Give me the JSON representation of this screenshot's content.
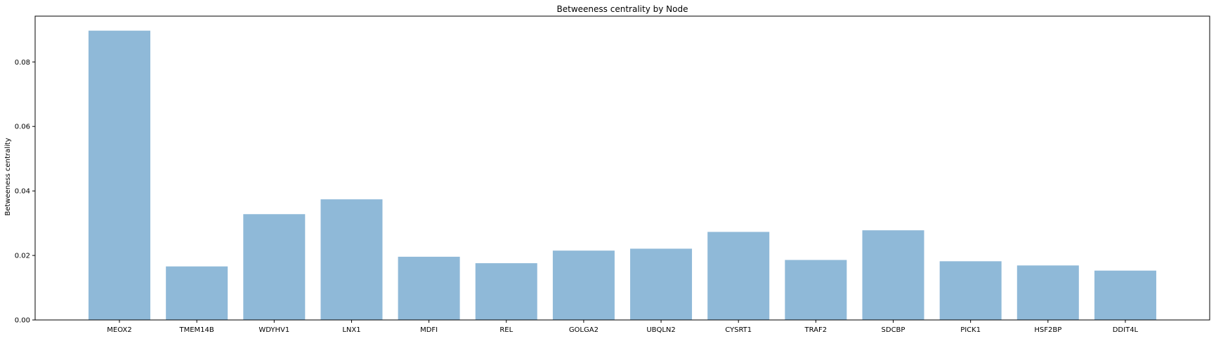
{
  "chart_data": {
    "type": "bar",
    "title": "Betweeness centrality by Node",
    "xlabel": "",
    "ylabel": "Betweeness centrality",
    "categories": [
      "MEOX2",
      "TMEM14B",
      "WDYHV1",
      "LNX1",
      "MDFI",
      "REL",
      "GOLGA2",
      "UBQLN2",
      "CYSRT1",
      "TRAF2",
      "SDCBP",
      "PICK1",
      "HSF2BP",
      "DDIT4L"
    ],
    "values": [
      0.0897,
      0.0166,
      0.0328,
      0.0374,
      0.0196,
      0.0176,
      0.0215,
      0.0221,
      0.0273,
      0.0186,
      0.0278,
      0.0182,
      0.0169,
      0.0153
    ],
    "ylim": [
      0,
      0.0942
    ],
    "yticks": [
      0.0,
      0.02,
      0.04,
      0.06,
      0.08
    ],
    "ytick_labels": [
      "0.00",
      "0.02",
      "0.04",
      "0.06",
      "0.08"
    ],
    "bar_color": "#8fb9d8",
    "grid": false,
    "legend": "none"
  }
}
